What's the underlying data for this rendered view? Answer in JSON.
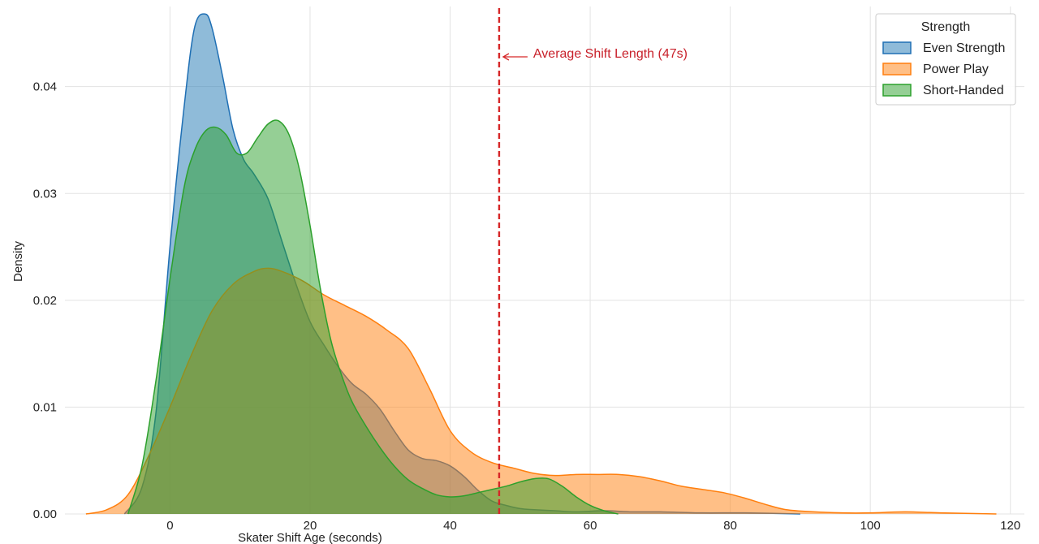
{
  "chart_data": {
    "type": "area",
    "title": "",
    "xlabel": "Skater Shift Age (seconds)",
    "ylabel": "Density",
    "xlim": [
      -15,
      122
    ],
    "ylim": [
      0,
      0.0475
    ],
    "xticks": [
      0,
      20,
      40,
      60,
      80,
      100,
      120
    ],
    "yticks": [
      0.0,
      0.01,
      0.02,
      0.03,
      0.04
    ],
    "ytick_labels": [
      "0.00",
      "0.01",
      "0.02",
      "0.03",
      "0.04"
    ],
    "grid": true,
    "legend": {
      "title": "Strength",
      "placement": "top-right"
    },
    "annotation": {
      "text": "Average Shift Length (47s)",
      "x": 47,
      "color": "#d62728"
    },
    "series": [
      {
        "name": "Even Strength",
        "stroke": "#1f6fb4",
        "fill": "#1f77b4",
        "x": [
          -6.5,
          -4,
          -2,
          0,
          2,
          3.5,
          5,
          6,
          7.5,
          9,
          10.5,
          12,
          14,
          16,
          18,
          20,
          22,
          24,
          26,
          28,
          30,
          32,
          34,
          36,
          38,
          40,
          42,
          44,
          46,
          48,
          50,
          52,
          55,
          58,
          62,
          66,
          70,
          76,
          82,
          90
        ],
        "y": [
          0,
          0.0025,
          0.0095,
          0.025,
          0.038,
          0.0455,
          0.0468,
          0.0455,
          0.041,
          0.036,
          0.0332,
          0.0318,
          0.0295,
          0.0255,
          0.0215,
          0.018,
          0.0158,
          0.0138,
          0.0122,
          0.0112,
          0.0098,
          0.0078,
          0.006,
          0.0052,
          0.005,
          0.0045,
          0.0035,
          0.0022,
          0.0012,
          0.0008,
          0.0005,
          0.0004,
          0.0003,
          0.0002,
          0.0003,
          0.0002,
          0.0002,
          0.0001,
          0.0001,
          0
        ]
      },
      {
        "name": "Power Play",
        "stroke": "#ff7f0e",
        "fill": "#ff7f0e",
        "x": [
          -12,
          -9,
          -6,
          -3,
          0,
          3,
          6,
          9,
          12,
          14,
          16,
          19,
          22,
          25,
          28,
          31,
          34,
          37,
          40,
          43,
          46,
          49,
          52,
          55,
          58,
          61,
          64,
          67,
          70,
          73,
          76,
          79,
          82,
          85,
          88,
          92,
          96,
          100,
          105,
          110,
          118
        ],
        "y": [
          0,
          0.0004,
          0.0018,
          0.0055,
          0.01,
          0.0148,
          0.019,
          0.0215,
          0.0227,
          0.023,
          0.0227,
          0.0218,
          0.0205,
          0.0195,
          0.0185,
          0.0172,
          0.0155,
          0.0118,
          0.0078,
          0.0058,
          0.0048,
          0.0043,
          0.0038,
          0.0036,
          0.0037,
          0.0037,
          0.0037,
          0.0035,
          0.0031,
          0.0026,
          0.0023,
          0.002,
          0.0015,
          0.0009,
          0.0004,
          0.0002,
          0.0001,
          0.0001,
          0.0002,
          0.0001,
          0
        ]
      },
      {
        "name": "Short-Handed",
        "stroke": "#2ca02c",
        "fill": "#2ca02c",
        "x": [
          -6,
          -4,
          -2,
          0,
          2,
          3.5,
          5,
          6.5,
          8,
          9.5,
          11,
          12.5,
          14,
          15.5,
          17,
          18.5,
          20,
          21.5,
          23,
          24.5,
          26,
          28,
          30,
          32,
          34,
          36,
          38,
          40,
          42,
          44,
          46,
          48,
          50,
          52,
          54,
          56,
          58,
          60,
          62,
          64
        ],
        "y": [
          0,
          0.0045,
          0.0125,
          0.022,
          0.0305,
          0.034,
          0.0358,
          0.0362,
          0.0355,
          0.0338,
          0.0338,
          0.0352,
          0.0365,
          0.0368,
          0.0355,
          0.0322,
          0.027,
          0.021,
          0.0162,
          0.013,
          0.0105,
          0.0082,
          0.0062,
          0.0045,
          0.0032,
          0.0024,
          0.0018,
          0.0016,
          0.0017,
          0.002,
          0.0023,
          0.0026,
          0.003,
          0.0033,
          0.0033,
          0.0026,
          0.0016,
          0.0008,
          0.0003,
          0
        ]
      }
    ]
  }
}
